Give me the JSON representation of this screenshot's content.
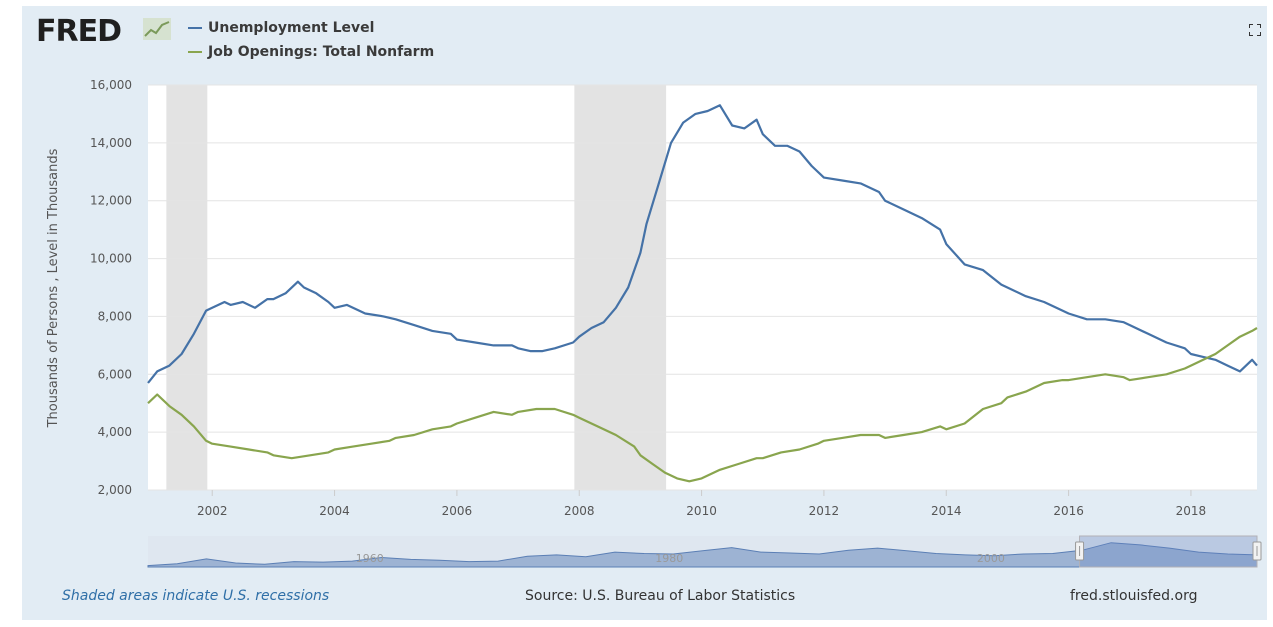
{
  "header": {
    "logo_text": "FRED",
    "fullscreen_icon": "fullscreen-icon"
  },
  "chart_data": {
    "type": "line",
    "ylabel": "Thousands of Persons , Level in Thousands",
    "xlim": [
      2000.95,
      2019.08
    ],
    "ylim": [
      2000,
      16000
    ],
    "y_ticks": [
      2000,
      4000,
      6000,
      8000,
      10000,
      12000,
      14000,
      16000
    ],
    "y_tick_labels": [
      "2,000",
      "4,000",
      "6,000",
      "8,000",
      "10,000",
      "12,000",
      "14,000",
      "16,000"
    ],
    "x_ticks": [
      2002,
      2004,
      2006,
      2008,
      2010,
      2012,
      2014,
      2016,
      2018
    ],
    "x_tick_labels": [
      "2002",
      "2004",
      "2006",
      "2008",
      "2010",
      "2012",
      "2014",
      "2016",
      "2018"
    ],
    "grid": "horizontal",
    "legend_position": "top-left",
    "recessions": [
      [
        2001.25,
        2001.92
      ],
      [
        2007.92,
        2009.42
      ]
    ],
    "series": [
      {
        "name": "Unemployment Level",
        "color": "#4572a7",
        "x": [
          2000.95,
          2001.1,
          2001.3,
          2001.5,
          2001.7,
          2001.9,
          2002.0,
          2002.2,
          2002.3,
          2002.5,
          2002.7,
          2002.9,
          2003.0,
          2003.2,
          2003.4,
          2003.5,
          2003.7,
          2003.9,
          2004.0,
          2004.2,
          2004.5,
          2004.8,
          2005.0,
          2005.3,
          2005.6,
          2005.9,
          2006.0,
          2006.3,
          2006.6,
          2006.9,
          2007.0,
          2007.2,
          2007.4,
          2007.6,
          2007.9,
          2008.0,
          2008.2,
          2008.4,
          2008.6,
          2008.8,
          2009.0,
          2009.1,
          2009.3,
          2009.5,
          2009.7,
          2009.9,
          2010.1,
          2010.3,
          2010.5,
          2010.7,
          2010.9,
          2011.0,
          2011.2,
          2011.4,
          2011.6,
          2011.8,
          2012.0,
          2012.3,
          2012.6,
          2012.9,
          2013.0,
          2013.3,
          2013.6,
          2013.9,
          2014.0,
          2014.3,
          2014.6,
          2014.9,
          2015.0,
          2015.3,
          2015.6,
          2015.9,
          2016.0,
          2016.3,
          2016.6,
          2016.9,
          2017.0,
          2017.3,
          2017.6,
          2017.9,
          2018.0,
          2018.2,
          2018.4,
          2018.6,
          2018.8,
          2019.0,
          2019.08
        ],
        "y": [
          5700,
          6100,
          6300,
          6700,
          7400,
          8200,
          8300,
          8500,
          8400,
          8500,
          8300,
          8600,
          8600,
          8800,
          9200,
          9000,
          8800,
          8500,
          8300,
          8400,
          8100,
          8000,
          7900,
          7700,
          7500,
          7400,
          7200,
          7100,
          7000,
          7000,
          6900,
          6800,
          6800,
          6900,
          7100,
          7300,
          7600,
          7800,
          8300,
          9000,
          10200,
          11200,
          12600,
          14000,
          14700,
          15000,
          15100,
          15300,
          14600,
          14500,
          14800,
          14300,
          13900,
          13900,
          13700,
          13200,
          12800,
          12700,
          12600,
          12300,
          12000,
          11700,
          11400,
          11000,
          10500,
          9800,
          9600,
          9100,
          9000,
          8700,
          8500,
          8200,
          8100,
          7900,
          7900,
          7800,
          7700,
          7400,
          7100,
          6900,
          6700,
          6600,
          6500,
          6300,
          6100,
          6500,
          6300
        ]
      },
      {
        "name": "Job Openings: Total Nonfarm",
        "color": "#89a54e",
        "x": [
          2000.95,
          2001.1,
          2001.3,
          2001.5,
          2001.7,
          2001.9,
          2002.0,
          2002.3,
          2002.6,
          2002.9,
          2003.0,
          2003.3,
          2003.6,
          2003.9,
          2004.0,
          2004.3,
          2004.6,
          2004.9,
          2005.0,
          2005.3,
          2005.6,
          2005.9,
          2006.0,
          2006.3,
          2006.6,
          2006.9,
          2007.0,
          2007.3,
          2007.6,
          2007.9,
          2008.0,
          2008.3,
          2008.6,
          2008.9,
          2009.0,
          2009.2,
          2009.4,
          2009.6,
          2009.8,
          2010.0,
          2010.3,
          2010.6,
          2010.9,
          2011.0,
          2011.3,
          2011.6,
          2011.9,
          2012.0,
          2012.3,
          2012.6,
          2012.9,
          2013.0,
          2013.3,
          2013.6,
          2013.9,
          2014.0,
          2014.3,
          2014.6,
          2014.9,
          2015.0,
          2015.3,
          2015.6,
          2015.9,
          2016.0,
          2016.3,
          2016.6,
          2016.9,
          2017.0,
          2017.3,
          2017.6,
          2017.9,
          2018.0,
          2018.2,
          2018.4,
          2018.6,
          2018.8,
          2019.0,
          2019.08
        ],
        "y": [
          5000,
          5300,
          4900,
          4600,
          4200,
          3700,
          3600,
          3500,
          3400,
          3300,
          3200,
          3100,
          3200,
          3300,
          3400,
          3500,
          3600,
          3700,
          3800,
          3900,
          4100,
          4200,
          4300,
          4500,
          4700,
          4600,
          4700,
          4800,
          4800,
          4600,
          4500,
          4200,
          3900,
          3500,
          3200,
          2900,
          2600,
          2400,
          2300,
          2400,
          2700,
          2900,
          3100,
          3100,
          3300,
          3400,
          3600,
          3700,
          3800,
          3900,
          3900,
          3800,
          3900,
          4000,
          4200,
          4100,
          4300,
          4800,
          5000,
          5200,
          5400,
          5700,
          5800,
          5800,
          5900,
          6000,
          5900,
          5800,
          5900,
          6000,
          6200,
          6300,
          6500,
          6700,
          7000,
          7300,
          7500,
          7600
        ]
      }
    ]
  },
  "navigator": {
    "label_left": "1960",
    "label_mid": "1980",
    "label_right": "2000",
    "values": [
      0.05,
      0.12,
      0.3,
      0.15,
      0.1,
      0.2,
      0.18,
      0.22,
      0.35,
      0.28,
      0.25,
      0.2,
      0.22,
      0.4,
      0.45,
      0.38,
      0.55,
      0.5,
      0.48,
      0.6,
      0.72,
      0.55,
      0.52,
      0.48,
      0.62,
      0.7,
      0.6,
      0.5,
      0.45,
      0.42,
      0.48,
      0.5,
      0.62,
      0.9,
      0.82,
      0.7,
      0.55,
      0.48,
      0.45
    ],
    "selection": [
      0.84,
      1.0
    ]
  },
  "footer": {
    "note": "Shaded areas indicate U.S. recessions",
    "source": "Source: U.S. Bureau of Labor Statistics",
    "site": "fred.stlouisfed.org"
  }
}
